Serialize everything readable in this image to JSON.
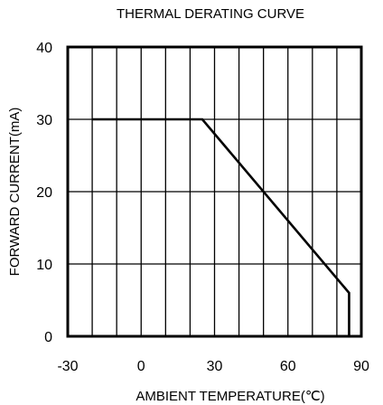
{
  "chart_data": {
    "type": "line",
    "title": "THERMAL DERATING CURVE",
    "xlabel": "AMBIENT TEMPERATURE(℃)",
    "ylabel": "FORWARD CURRENT(mA)",
    "xlim": [
      -30,
      90
    ],
    "ylim": [
      0,
      40
    ],
    "x_ticks": [
      "-30",
      "0",
      "30",
      "60",
      "90"
    ],
    "y_ticks": [
      "0",
      "10",
      "20",
      "30",
      "40"
    ],
    "grid": true,
    "series": [
      {
        "x": [
          -20,
          25,
          85,
          85
        ],
        "y": [
          30,
          30,
          6,
          0
        ]
      }
    ]
  }
}
